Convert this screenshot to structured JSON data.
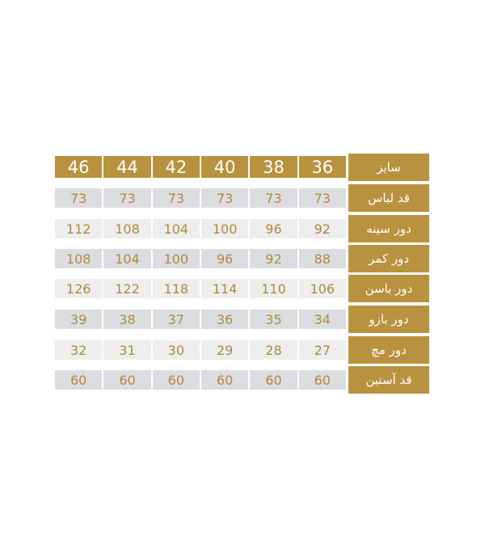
{
  "colors": {
    "gold": "#b8923e",
    "row_dark": "#dcdde0",
    "row_light": "#eeeeef",
    "value_text": "#b08a3a"
  },
  "size_chart": {
    "header": {
      "label": "سایز",
      "values": [
        "46",
        "44",
        "42",
        "40",
        "38",
        "36"
      ]
    },
    "rows": [
      {
        "label": "قد لباس",
        "values": [
          "73",
          "73",
          "73",
          "73",
          "73",
          "73"
        ]
      },
      {
        "label": "دور سینه",
        "values": [
          "112",
          "108",
          "104",
          "100",
          "96",
          "92"
        ]
      },
      {
        "label": "دور کمر",
        "values": [
          "108",
          "104",
          "100",
          "96",
          "92",
          "88"
        ]
      },
      {
        "label": "دور باسن",
        "values": [
          "126",
          "122",
          "118",
          "114",
          "110",
          "106"
        ]
      },
      {
        "label": "دور بازو",
        "values": [
          "39",
          "38",
          "37",
          "36",
          "35",
          "34"
        ]
      },
      {
        "label": "دور مچ",
        "values": [
          "32",
          "31",
          "30",
          "29",
          "28",
          "27"
        ]
      },
      {
        "label": "قد آستین",
        "values": [
          "60",
          "60",
          "60",
          "60",
          "60",
          "60"
        ]
      }
    ]
  }
}
